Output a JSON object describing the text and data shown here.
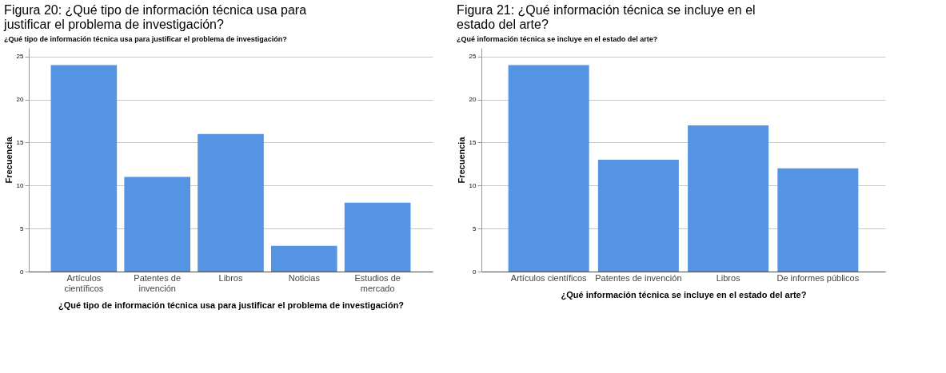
{
  "chart_data": [
    {
      "type": "bar",
      "title": "Figura 20: ¿Qué tipo de información técnica usa para justificar el problema de investigación?",
      "subtitle": "¿Qué tipo de información técnica usa para justificar el problema de investigación?",
      "xlabel": "¿Qué tipo de información técnica usa para justificar el problema de investigación?",
      "ylabel": "Frecuencia",
      "categories": [
        "Artículos científicos",
        "Patentes de invención",
        "Libros",
        "Noticias",
        "Estudios de mercado"
      ],
      "values": [
        24,
        11,
        16,
        3,
        8
      ],
      "color": "#5594e3",
      "ylim": [
        0,
        26
      ],
      "yticks": [
        0,
        5,
        10,
        15,
        20,
        25
      ],
      "grid": "y"
    },
    {
      "type": "bar",
      "title": "Figura 21: ¿Qué información técnica se incluye en el estado del arte?",
      "subtitle": "¿Qué información técnica se incluye en el estado del arte?",
      "xlabel": "¿Qué información técnica se incluye en el estado del arte?",
      "ylabel": "Frecuencia",
      "categories": [
        "Artículos científicos",
        "Patentes de invención",
        "Libros",
        "De informes públicos"
      ],
      "values": [
        24,
        13,
        17,
        12
      ],
      "color": "#5594e3",
      "ylim": [
        0,
        26
      ],
      "yticks": [
        0,
        5,
        10,
        15,
        20,
        25
      ],
      "grid": "y"
    }
  ]
}
